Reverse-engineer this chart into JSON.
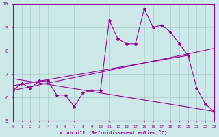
{
  "xlabel": "Windchill (Refroidissement éolien,°C)",
  "bg_color": "#cce8e8",
  "grid_color": "#aacccc",
  "line_color": "#990099",
  "x_values": [
    0,
    1,
    2,
    3,
    4,
    5,
    6,
    7,
    8,
    9,
    10,
    11,
    12,
    13,
    14,
    15,
    16,
    17,
    18,
    19,
    20,
    21,
    22,
    23
  ],
  "y_main": [
    6.3,
    6.6,
    6.4,
    6.7,
    6.7,
    6.1,
    6.1,
    5.6,
    6.2,
    6.3,
    6.3,
    9.3,
    8.5,
    8.3,
    8.3,
    9.8,
    9.0,
    9.1,
    8.8,
    8.3,
    7.8,
    6.4,
    5.7,
    5.4
  ],
  "line1_x": [
    0,
    23
  ],
  "line1_y": [
    6.3,
    8.1
  ],
  "line2_x": [
    0,
    20
  ],
  "line2_y": [
    6.5,
    7.8
  ],
  "line3_x": [
    0,
    23
  ],
  "line3_y": [
    6.8,
    5.4
  ],
  "ylim": [
    5,
    10
  ],
  "xlim": [
    0,
    23
  ]
}
